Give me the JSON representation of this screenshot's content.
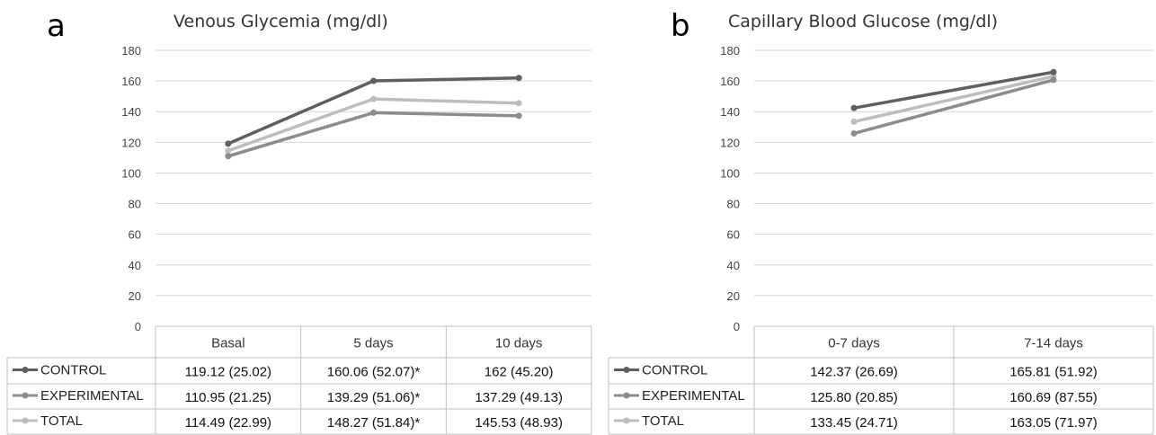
{
  "chart_data": [
    {
      "type": "line",
      "panel_label": "a",
      "title": "Venous Glycemia (mg/dl)",
      "categories": [
        "Basal",
        "5 days",
        "10 days"
      ],
      "ylim": [
        0,
        180
      ],
      "yticks": [
        0,
        20,
        40,
        60,
        80,
        100,
        120,
        140,
        160,
        180
      ],
      "grid": true,
      "legend_placement": "data-table-left",
      "series": [
        {
          "name": "CONTROL",
          "color": "#5f5f5f",
          "values": [
            119.12,
            160.06,
            162
          ],
          "labels": [
            "119.12 (25.02)",
            "160.06 (52.07)*",
            "162 (45.20)"
          ]
        },
        {
          "name": "EXPERIMENTAL",
          "color": "#8c8c8c",
          "values": [
            110.95,
            139.29,
            137.29
          ],
          "labels": [
            "110.95 (21.25)",
            "139.29 (51.06)*",
            "137.29 (49.13)"
          ]
        },
        {
          "name": "TOTAL",
          "color": "#bdbdbd",
          "values": [
            114.49,
            148.27,
            145.53
          ],
          "labels": [
            "114.49 (22.99)",
            "148.27 (51.84)*",
            "145.53 (48.93)"
          ]
        }
      ]
    },
    {
      "type": "line",
      "panel_label": "b",
      "title": "Capillary Blood Glucose (mg/dl)",
      "categories": [
        "0-7 days",
        "7-14 days"
      ],
      "ylim": [
        0,
        180
      ],
      "yticks": [
        0,
        20,
        40,
        60,
        80,
        100,
        120,
        140,
        160,
        180
      ],
      "grid": true,
      "legend_placement": "data-table-left",
      "series": [
        {
          "name": "CONTROL",
          "color": "#5f5f5f",
          "values": [
            142.37,
            165.81
          ],
          "labels": [
            "142.37 (26.69)",
            "165.81 (51.92)"
          ]
        },
        {
          "name": "EXPERIMENTAL",
          "color": "#8c8c8c",
          "values": [
            125.8,
            160.69
          ],
          "labels": [
            "125.80 (20.85)",
            "160.69 (87.55)"
          ]
        },
        {
          "name": "TOTAL",
          "color": "#bdbdbd",
          "values": [
            133.45,
            163.05
          ],
          "labels": [
            "133.45 (24.71)",
            "163.05 (71.97)"
          ]
        }
      ]
    }
  ]
}
